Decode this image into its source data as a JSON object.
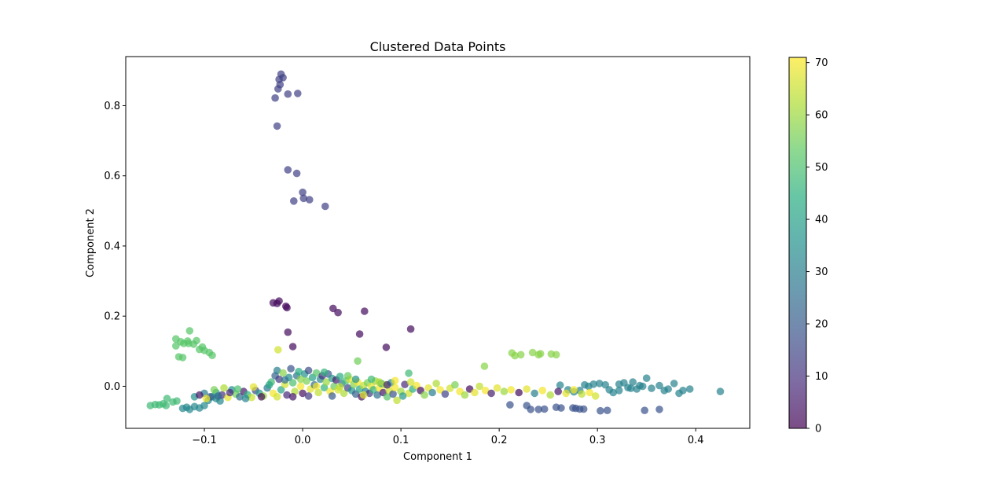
{
  "chart_data": {
    "type": "scatter",
    "title": "Clustered Data Points",
    "xlabel": "Component 1",
    "ylabel": "Component 2",
    "xlim": [
      -0.18,
      0.455
    ],
    "ylim": [
      -0.12,
      0.94
    ],
    "xticks": [
      -0.1,
      0.0,
      0.1,
      0.2,
      0.3,
      0.4
    ],
    "xtick_labels": [
      "−0.1",
      "0.0",
      "0.1",
      "0.2",
      "0.3",
      "0.4"
    ],
    "yticks": [
      0.0,
      0.2,
      0.4,
      0.6,
      0.8
    ],
    "ytick_labels": [
      "0.0",
      "0.2",
      "0.4",
      "0.6",
      "0.8"
    ],
    "grid": false,
    "colormap": "viridis",
    "point_alpha": 0.7,
    "colorbar": {
      "range": [
        0,
        71
      ],
      "ticks": [
        0,
        10,
        20,
        30,
        40,
        50,
        60,
        70
      ],
      "tick_labels": [
        "0",
        "10",
        "20",
        "30",
        "40",
        "50",
        "60",
        "70"
      ]
    },
    "points": [
      [
        -0.022,
        0.89,
        14
      ],
      [
        -0.024,
        0.875,
        14
      ],
      [
        -0.02,
        0.88,
        14
      ],
      [
        -0.023,
        0.86,
        14
      ],
      [
        -0.025,
        0.848,
        14
      ],
      [
        -0.028,
        0.822,
        14
      ],
      [
        -0.015,
        0.833,
        14
      ],
      [
        -0.005,
        0.835,
        14
      ],
      [
        -0.026,
        0.742,
        14
      ],
      [
        -0.015,
        0.617,
        14
      ],
      [
        -0.006,
        0.607,
        14
      ],
      [
        0.0,
        0.553,
        14
      ],
      [
        0.001,
        0.536,
        14
      ],
      [
        -0.009,
        0.528,
        14
      ],
      [
        0.007,
        0.532,
        14
      ],
      [
        0.023,
        0.513,
        14
      ],
      [
        -0.03,
        0.238,
        2
      ],
      [
        -0.026,
        0.236,
        2
      ],
      [
        -0.024,
        0.243,
        2
      ],
      [
        -0.017,
        0.228,
        2
      ],
      [
        -0.016,
        0.224,
        2
      ],
      [
        0.031,
        0.222,
        2
      ],
      [
        0.036,
        0.21,
        2
      ],
      [
        0.063,
        0.214,
        2
      ],
      [
        0.11,
        0.163,
        2
      ],
      [
        -0.015,
        0.154,
        2
      ],
      [
        0.058,
        0.149,
        2
      ],
      [
        -0.01,
        0.113,
        2
      ],
      [
        0.085,
        0.111,
        2
      ],
      [
        -0.129,
        0.135,
        52
      ],
      [
        -0.129,
        0.115,
        52
      ],
      [
        -0.124,
        0.127,
        52
      ],
      [
        -0.121,
        0.122,
        52
      ],
      [
        -0.117,
        0.129,
        52
      ],
      [
        -0.115,
        0.158,
        52
      ],
      [
        -0.111,
        0.12,
        52
      ],
      [
        -0.108,
        0.13,
        52
      ],
      [
        -0.105,
        0.105,
        52
      ],
      [
        -0.102,
        0.112,
        52
      ],
      [
        -0.1,
        0.102,
        52
      ],
      [
        -0.095,
        0.096,
        52
      ],
      [
        -0.092,
        0.088,
        52
      ],
      [
        -0.126,
        0.084,
        52
      ],
      [
        -0.122,
        0.082,
        52
      ],
      [
        -0.116,
        0.122,
        52
      ],
      [
        0.213,
        0.095,
        58
      ],
      [
        0.216,
        0.087,
        58
      ],
      [
        0.222,
        0.09,
        58
      ],
      [
        0.234,
        0.096,
        58
      ],
      [
        0.24,
        0.09,
        58
      ],
      [
        0.242,
        0.093,
        58
      ],
      [
        0.253,
        0.092,
        58
      ],
      [
        0.258,
        0.09,
        58
      ],
      [
        0.185,
        0.057,
        58
      ],
      [
        -0.025,
        0.104,
        66
      ],
      [
        0.056,
        0.072,
        55
      ],
      [
        0.108,
        0.037,
        48
      ],
      [
        -0.155,
        -0.055,
        48
      ],
      [
        -0.15,
        -0.052,
        48
      ],
      [
        -0.146,
        -0.053,
        48
      ],
      [
        -0.142,
        -0.05,
        48
      ],
      [
        -0.139,
        -0.055,
        48
      ],
      [
        -0.138,
        -0.035,
        48
      ],
      [
        -0.132,
        -0.045,
        48
      ],
      [
        -0.128,
        -0.042,
        48
      ],
      [
        -0.122,
        -0.063,
        33
      ],
      [
        -0.118,
        -0.06,
        33
      ],
      [
        -0.115,
        -0.066,
        33
      ],
      [
        -0.11,
        -0.058,
        33
      ],
      [
        -0.105,
        -0.062,
        33
      ],
      [
        -0.1,
        -0.055,
        33
      ],
      [
        -0.096,
        -0.04,
        33
      ],
      [
        -0.092,
        -0.03,
        33
      ],
      [
        -0.088,
        -0.035,
        33
      ],
      [
        -0.084,
        -0.042,
        33
      ],
      [
        0.211,
        -0.053,
        18
      ],
      [
        0.228,
        -0.055,
        18
      ],
      [
        0.232,
        -0.066,
        18
      ],
      [
        0.24,
        -0.066,
        18
      ],
      [
        0.246,
        -0.065,
        18
      ],
      [
        0.258,
        -0.06,
        18
      ],
      [
        0.263,
        -0.062,
        18
      ],
      [
        0.275,
        -0.062,
        18
      ],
      [
        0.278,
        -0.063,
        18
      ],
      [
        0.282,
        -0.065,
        18
      ],
      [
        0.286,
        -0.065,
        18
      ],
      [
        0.303,
        -0.07,
        18
      ],
      [
        0.31,
        -0.069,
        18
      ],
      [
        0.348,
        -0.069,
        18
      ],
      [
        0.363,
        -0.066,
        18
      ],
      [
        0.262,
        0.003,
        31
      ],
      [
        0.27,
        -0.01,
        31
      ],
      [
        0.276,
        -0.016,
        31
      ],
      [
        0.282,
        -0.012,
        31
      ],
      [
        0.287,
        0.004,
        31
      ],
      [
        0.291,
        0.0,
        31
      ],
      [
        0.296,
        0.006,
        31
      ],
      [
        0.302,
        0.008,
        31
      ],
      [
        0.308,
        0.004,
        31
      ],
      [
        0.312,
        -0.01,
        31
      ],
      [
        0.316,
        -0.018,
        31
      ],
      [
        0.322,
        0.006,
        31
      ],
      [
        0.327,
        0.01,
        31
      ],
      [
        0.331,
        -0.004,
        31
      ],
      [
        0.336,
        0.012,
        31
      ],
      [
        0.34,
        -0.008,
        31
      ],
      [
        0.343,
        0.002,
        31
      ],
      [
        0.35,
        0.023,
        31
      ],
      [
        0.355,
        -0.006,
        31
      ],
      [
        0.363,
        0.002,
        31
      ],
      [
        0.368,
        -0.012,
        31
      ],
      [
        0.372,
        -0.008,
        31
      ],
      [
        0.378,
        0.008,
        31
      ],
      [
        0.383,
        -0.02,
        31
      ],
      [
        0.387,
        -0.012,
        31
      ],
      [
        0.394,
        -0.008,
        31
      ],
      [
        0.425,
        -0.015,
        31
      ],
      [
        0.322,
        -0.012,
        31
      ],
      [
        0.334,
        -0.006,
        31
      ],
      [
        0.346,
        0.0,
        31
      ],
      [
        -0.1,
        -0.02,
        30
      ],
      [
        -0.094,
        -0.03,
        20
      ],
      [
        -0.088,
        -0.018,
        40
      ],
      [
        -0.082,
        -0.025,
        10
      ],
      [
        -0.076,
        -0.032,
        68
      ],
      [
        -0.072,
        -0.01,
        35
      ],
      [
        -0.068,
        -0.022,
        55
      ],
      [
        -0.064,
        -0.03,
        25
      ],
      [
        -0.06,
        -0.015,
        5
      ],
      [
        -0.056,
        -0.024,
        45
      ],
      [
        -0.052,
        -0.032,
        65
      ],
      [
        -0.048,
        -0.012,
        15
      ],
      [
        -0.044,
        -0.02,
        38
      ],
      [
        -0.04,
        -0.028,
        60
      ],
      [
        -0.036,
        -0.005,
        28
      ],
      [
        -0.032,
        0.012,
        48
      ],
      [
        -0.03,
        -0.02,
        70
      ],
      [
        -0.028,
        0.03,
        22
      ],
      [
        -0.026,
        0.045,
        30
      ],
      [
        -0.024,
        0.02,
        12
      ],
      [
        -0.022,
        -0.01,
        42
      ],
      [
        -0.02,
        0.038,
        58
      ],
      [
        -0.018,
        0.005,
        66
      ],
      [
        -0.016,
        -0.025,
        8
      ],
      [
        -0.014,
        0.025,
        34
      ],
      [
        -0.012,
        0.05,
        18
      ],
      [
        -0.01,
        0.01,
        50
      ],
      [
        -0.008,
        -0.015,
        62
      ],
      [
        -0.006,
        0.03,
        26
      ],
      [
        -0.004,
        0.042,
        44
      ],
      [
        -0.002,
        0.0,
        70
      ],
      [
        0.0,
        -0.02,
        3
      ],
      [
        0.002,
        0.035,
        36
      ],
      [
        0.004,
        0.015,
        56
      ],
      [
        0.006,
        0.045,
        16
      ],
      [
        0.008,
        -0.008,
        68
      ],
      [
        0.01,
        0.025,
        40
      ],
      [
        0.012,
        0.004,
        24
      ],
      [
        0.014,
        0.038,
        52
      ],
      [
        0.016,
        -0.018,
        64
      ],
      [
        0.018,
        0.02,
        32
      ],
      [
        0.02,
        0.03,
        10
      ],
      [
        0.022,
        -0.004,
        46
      ],
      [
        0.024,
        0.012,
        60
      ],
      [
        0.026,
        0.035,
        20
      ],
      [
        0.028,
        -0.015,
        70
      ],
      [
        0.03,
        0.022,
        38
      ],
      [
        0.032,
        0.0,
        54
      ],
      [
        0.034,
        0.018,
        6
      ],
      [
        0.036,
        -0.01,
        66
      ],
      [
        0.038,
        0.028,
        44
      ],
      [
        0.04,
        0.008,
        28
      ],
      [
        0.042,
        -0.02,
        62
      ],
      [
        0.044,
        0.015,
        50
      ],
      [
        0.046,
        -0.005,
        14
      ],
      [
        0.048,
        0.02,
        68
      ],
      [
        0.05,
        -0.012,
        36
      ],
      [
        0.052,
        0.005,
        58
      ],
      [
        0.054,
        -0.022,
        22
      ],
      [
        0.056,
        0.012,
        70
      ],
      [
        0.058,
        -0.008,
        42
      ],
      [
        0.06,
        -0.03,
        2
      ],
      [
        0.062,
        0.002,
        64
      ],
      [
        0.064,
        -0.015,
        32
      ],
      [
        0.066,
        0.01,
        56
      ],
      [
        0.068,
        -0.02,
        12
      ],
      [
        0.07,
        0.0,
        68
      ],
      [
        0.072,
        -0.01,
        46
      ],
      [
        0.074,
        0.015,
        60
      ],
      [
        0.076,
        -0.025,
        26
      ],
      [
        0.078,
        -0.005,
        70
      ],
      [
        0.08,
        0.008,
        40
      ],
      [
        0.082,
        -0.018,
        4
      ],
      [
        0.084,
        0.004,
        62
      ],
      [
        0.086,
        -0.03,
        52
      ],
      [
        0.088,
        -0.012,
        66
      ],
      [
        0.09,
        0.01,
        34
      ],
      [
        0.092,
        -0.022,
        18
      ],
      [
        0.094,
        -0.004,
        70
      ],
      [
        0.096,
        -0.04,
        64
      ],
      [
        0.1,
        -0.015,
        60
      ],
      [
        0.104,
        0.005,
        8
      ],
      [
        0.108,
        -0.02,
        66
      ],
      [
        0.112,
        -0.008,
        44
      ],
      [
        0.116,
        0.002,
        70
      ],
      [
        0.12,
        -0.012,
        2
      ],
      [
        0.124,
        -0.025,
        58
      ],
      [
        0.128,
        -0.005,
        68
      ],
      [
        0.132,
        -0.018,
        30
      ],
      [
        0.136,
        0.008,
        62
      ],
      [
        0.14,
        -0.01,
        70
      ],
      [
        0.145,
        -0.022,
        14
      ],
      [
        0.15,
        -0.006,
        66
      ],
      [
        0.155,
        0.004,
        56
      ],
      [
        0.16,
        -0.015,
        70
      ],
      [
        0.165,
        -0.025,
        60
      ],
      [
        0.17,
        -0.008,
        2
      ],
      [
        0.175,
        -0.018,
        68
      ],
      [
        0.18,
        0.0,
        64
      ],
      [
        0.186,
        -0.012,
        70
      ],
      [
        0.192,
        -0.02,
        6
      ],
      [
        0.198,
        -0.005,
        68
      ],
      [
        0.205,
        -0.015,
        60
      ],
      [
        0.212,
        -0.01,
        70
      ],
      [
        0.22,
        -0.018,
        2
      ],
      [
        0.228,
        -0.008,
        68
      ],
      [
        0.236,
        -0.02,
        30
      ],
      [
        0.244,
        -0.012,
        70
      ],
      [
        0.252,
        -0.025,
        62
      ],
      [
        0.26,
        -0.015,
        4
      ],
      [
        0.268,
        -0.02,
        68
      ],
      [
        0.276,
        -0.01,
        70
      ],
      [
        0.284,
        -0.022,
        64
      ],
      [
        0.292,
        -0.018,
        70
      ],
      [
        0.298,
        -0.028,
        66
      ],
      [
        -0.11,
        -0.03,
        36
      ],
      [
        -0.105,
        -0.025,
        4
      ],
      [
        -0.098,
        -0.035,
        70
      ],
      [
        -0.09,
        -0.01,
        56
      ],
      [
        -0.086,
        -0.028,
        24
      ],
      [
        -0.08,
        -0.005,
        62
      ],
      [
        -0.074,
        -0.018,
        8
      ],
      [
        -0.066,
        -0.008,
        50
      ],
      [
        -0.058,
        -0.035,
        32
      ],
      [
        -0.05,
        -0.002,
        68
      ],
      [
        -0.042,
        -0.03,
        2
      ],
      [
        -0.034,
        0.004,
        42
      ],
      [
        -0.026,
        -0.03,
        66
      ],
      [
        -0.018,
        0.018,
        26
      ],
      [
        -0.01,
        -0.03,
        4
      ],
      [
        -0.002,
        0.02,
        58
      ],
      [
        0.006,
        -0.028,
        12
      ],
      [
        0.014,
        0.0,
        70
      ],
      [
        0.022,
        0.04,
        46
      ],
      [
        0.03,
        -0.028,
        20
      ],
      [
        0.038,
        -0.002,
        64
      ],
      [
        0.046,
        0.03,
        54
      ],
      [
        0.054,
        0.02,
        36
      ],
      [
        0.062,
        -0.025,
        68
      ],
      [
        0.07,
        0.02,
        48
      ],
      [
        0.078,
        0.012,
        62
      ],
      [
        0.086,
        0.004,
        8
      ],
      [
        0.094,
        0.016,
        70
      ],
      [
        0.102,
        -0.028,
        38
      ],
      [
        0.11,
        0.012,
        66
      ]
    ]
  }
}
